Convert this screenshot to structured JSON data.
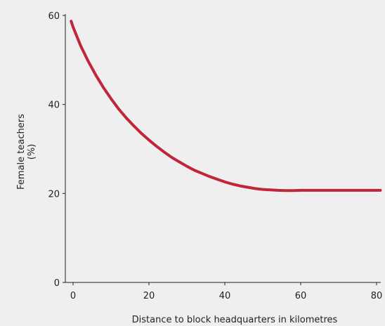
{
  "chart_data": {
    "type": "line",
    "title": "",
    "xlabel": "Distance to block headquarters in kilometres",
    "ylabel_lines": [
      "Female teachers",
      "(%)"
    ],
    "xlim": [
      0,
      80
    ],
    "ylim": [
      0,
      60
    ],
    "x_ticks": [
      0,
      20,
      40,
      60,
      80
    ],
    "y_ticks": [
      0,
      20,
      40,
      60
    ],
    "x_tick_labels": [
      "0",
      "20",
      "40",
      "60",
      "80"
    ],
    "y_tick_labels": [
      "0",
      "20",
      "40",
      "60"
    ],
    "grid": false,
    "series": [
      {
        "color": "#c0253a",
        "points": [
          [
            -0.5,
            58.7
          ],
          [
            0,
            57.4
          ],
          [
            2,
            53.2
          ],
          [
            4,
            49.7
          ],
          [
            6,
            46.6
          ],
          [
            8,
            43.8
          ],
          [
            10,
            41.3
          ],
          [
            12,
            39.0
          ],
          [
            14,
            37.0
          ],
          [
            16,
            35.2
          ],
          [
            18,
            33.5
          ],
          [
            20,
            32.0
          ],
          [
            22,
            30.6
          ],
          [
            24,
            29.3
          ],
          [
            26,
            28.1
          ],
          [
            28,
            27.1
          ],
          [
            30,
            26.1
          ],
          [
            32,
            25.2
          ],
          [
            34,
            24.5
          ],
          [
            36,
            23.8
          ],
          [
            38,
            23.2
          ],
          [
            40,
            22.6
          ],
          [
            42,
            22.1
          ],
          [
            44,
            21.7
          ],
          [
            46,
            21.4
          ],
          [
            48,
            21.1
          ],
          [
            50,
            20.9
          ],
          [
            52,
            20.8
          ],
          [
            54,
            20.7
          ],
          [
            56,
            20.65
          ],
          [
            58,
            20.65
          ],
          [
            60,
            20.7
          ],
          [
            62,
            20.7
          ],
          [
            66,
            20.7
          ],
          [
            70,
            20.7
          ],
          [
            74,
            20.7
          ],
          [
            78,
            20.7
          ],
          [
            81,
            20.7
          ]
        ]
      }
    ]
  }
}
